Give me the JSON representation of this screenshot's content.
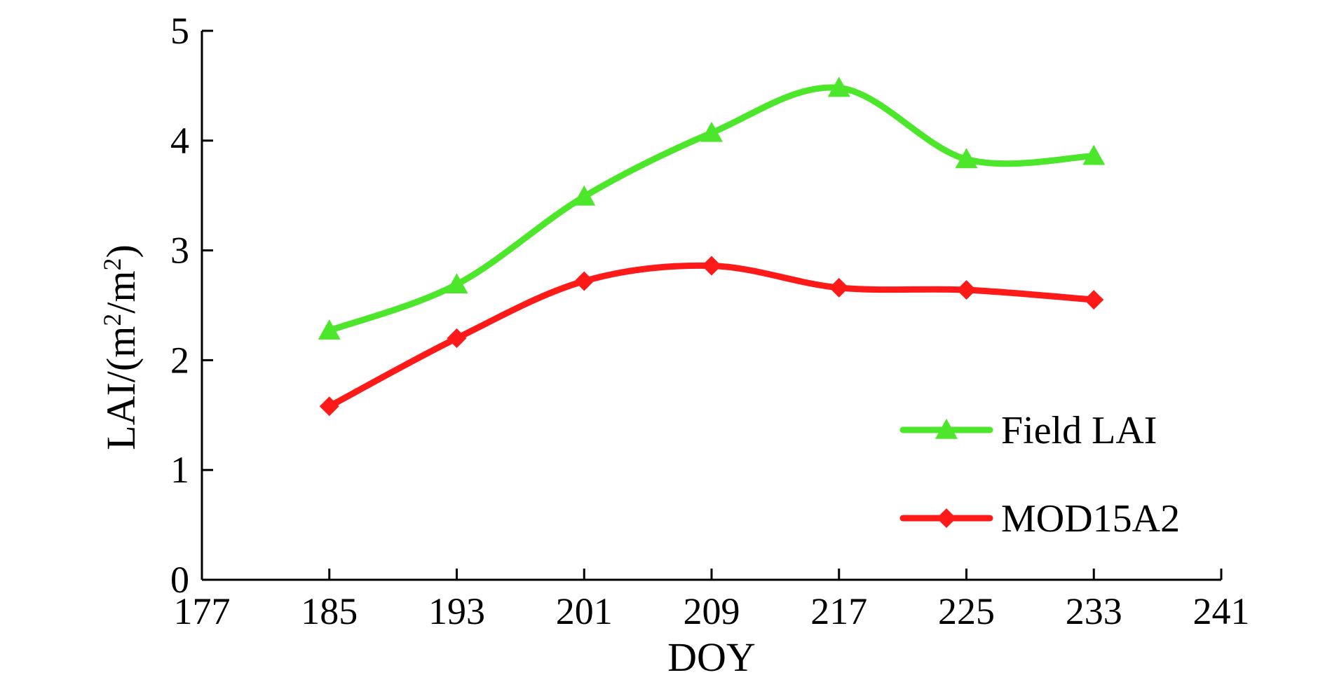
{
  "chart_data": {
    "type": "line",
    "title": "",
    "xlabel": "DOY",
    "ylabel_parts": {
      "prefix": "LAI/(m",
      "sup1": "2",
      "middle": "/m",
      "sup2": "2",
      "suffix": ")"
    },
    "xlim": [
      177,
      241
    ],
    "ylim": [
      0,
      5
    ],
    "x_ticks": [
      177,
      185,
      193,
      201,
      209,
      217,
      225,
      233,
      241
    ],
    "y_ticks": [
      0,
      1,
      2,
      3,
      4,
      5
    ],
    "x": [
      185,
      193,
      201,
      209,
      217,
      225,
      233
    ],
    "grid": false,
    "legend_position": "bottom-right",
    "series": [
      {
        "name": "Field LAI",
        "marker": "triangle",
        "color": "#4ce62a",
        "values": [
          2.27,
          2.69,
          3.49,
          4.07,
          4.48,
          3.83,
          3.86
        ]
      },
      {
        "name": "MOD15A2",
        "marker": "diamond",
        "color": "#ff1a1a",
        "values": [
          1.58,
          2.2,
          2.72,
          2.86,
          2.66,
          2.64,
          2.55
        ]
      }
    ]
  }
}
